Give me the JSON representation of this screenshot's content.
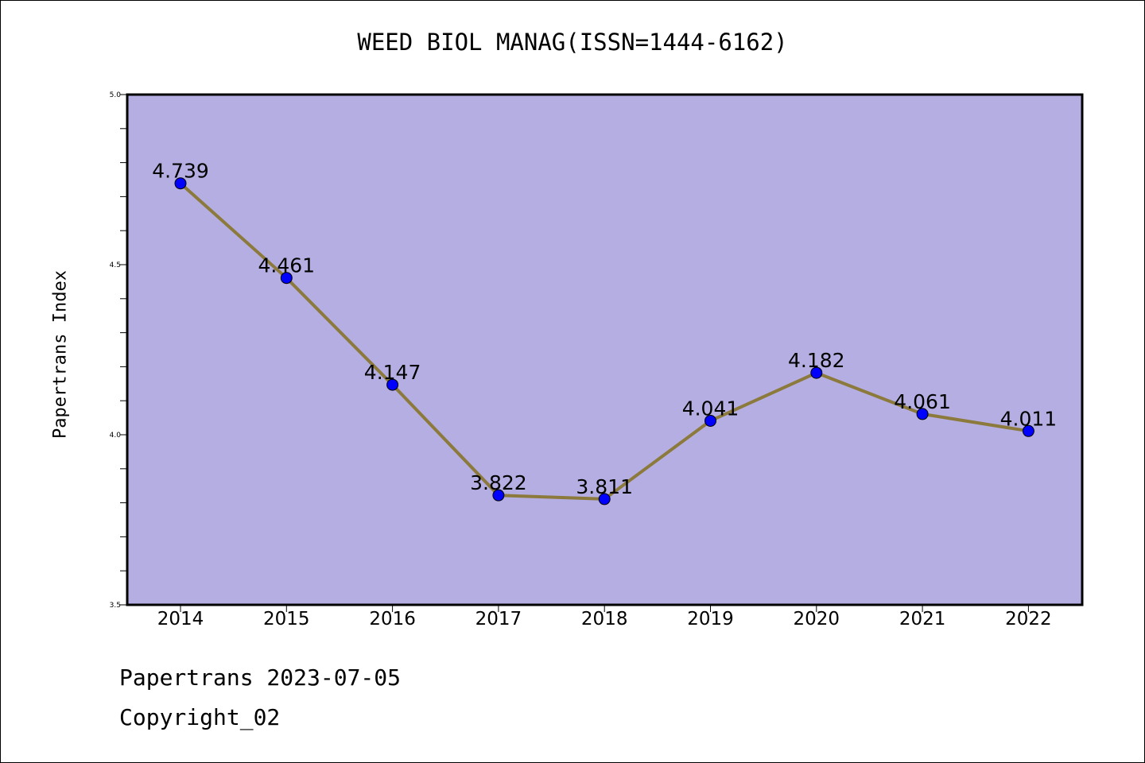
{
  "chart_data": {
    "type": "line",
    "title": "WEED BIOL MANAG(ISSN=1444-6162)",
    "xlabel": "",
    "ylabel": "Papertrans Index",
    "categories": [
      "2014",
      "2015",
      "2016",
      "2017",
      "2018",
      "2019",
      "2020",
      "2021",
      "2022"
    ],
    "series": [
      {
        "values": [
          4.739,
          4.461,
          4.147,
          3.822,
          3.811,
          4.041,
          4.182,
          4.061,
          4.011
        ]
      }
    ],
    "data_labels": [
      "4.739",
      "4.461",
      "4.147",
      "3.822",
      "3.811",
      "4.041",
      "4.182",
      "4.061",
      "4.011"
    ],
    "ylim": [
      3.5,
      5.0
    ],
    "y_ticks": [
      "3.5",
      "4.0",
      "4.5",
      "5.0"
    ],
    "grid": false,
    "colors": {
      "plot_background": "#b4aee2",
      "line": "#8c7a3c",
      "marker": "#0000ff"
    }
  },
  "footer": {
    "date_text": "Papertrans 2023-07-05",
    "copyright_text": "Copyright_02"
  }
}
